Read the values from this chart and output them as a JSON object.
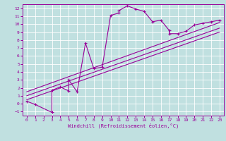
{
  "xlabel": "Windchill (Refroidissement éolien,°C)",
  "bg_color": "#c0e0e0",
  "line_color": "#990099",
  "grid_color": "#ffffff",
  "xlim": [
    -0.5,
    23.5
  ],
  "ylim": [
    -1.5,
    12.5
  ],
  "xticks": [
    0,
    1,
    2,
    3,
    4,
    5,
    6,
    7,
    8,
    9,
    10,
    11,
    12,
    13,
    14,
    15,
    16,
    17,
    18,
    19,
    20,
    21,
    22,
    23
  ],
  "yticks": [
    -1,
    0,
    1,
    2,
    3,
    4,
    5,
    6,
    7,
    8,
    9,
    10,
    11,
    12
  ],
  "series1_x": [
    0,
    1,
    3,
    3,
    4,
    5,
    5,
    6,
    7,
    8,
    9,
    10,
    11,
    11,
    12,
    13,
    14,
    15,
    16,
    17,
    17,
    18,
    19,
    20,
    21,
    22,
    23
  ],
  "series1_y": [
    0.3,
    -0.1,
    -1.1,
    1.7,
    2.1,
    1.6,
    3.0,
    1.5,
    7.6,
    4.4,
    4.6,
    11.1,
    11.4,
    11.7,
    12.3,
    11.9,
    11.6,
    10.3,
    10.5,
    9.2,
    8.8,
    8.8,
    9.1,
    9.9,
    10.1,
    10.3,
    10.5
  ],
  "line2_x": [
    0,
    23
  ],
  "line2_y": [
    1.0,
    9.5
  ],
  "line3_x": [
    0,
    23
  ],
  "line3_y": [
    0.5,
    9.0
  ],
  "line4_x": [
    0,
    23
  ],
  "line4_y": [
    1.5,
    10.2
  ]
}
